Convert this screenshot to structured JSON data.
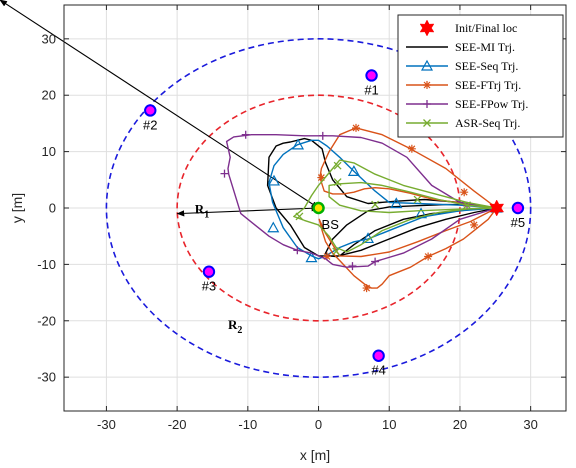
{
  "chart_data": {
    "type": "line",
    "xlabel": "x [m]",
    "ylabel": "y [m]",
    "xlim": [
      -36,
      35
    ],
    "ylim": [
      -36,
      36
    ],
    "xticks": [
      -30,
      -20,
      -10,
      0,
      10,
      20,
      30
    ],
    "yticks": [
      -30,
      -20,
      -10,
      0,
      10,
      20,
      30
    ],
    "grid": true,
    "legend_position": "top-right",
    "bs": {
      "x": 0,
      "y": 0,
      "label": "BS"
    },
    "users": [
      {
        "label": "#1",
        "x": 7.5,
        "y": 23.5
      },
      {
        "label": "#2",
        "x": -23.8,
        "y": 17.3
      },
      {
        "label": "#3",
        "x": -15.5,
        "y": -11.3
      },
      {
        "label": "#4",
        "x": 8.5,
        "y": -26.2
      },
      {
        "label": "#5",
        "x": 28.2,
        "y": 0
      }
    ],
    "circles": [
      {
        "name": "R1",
        "cx": 0,
        "cy": 0,
        "r": 20,
        "color": "#e8242b"
      },
      {
        "name": "R2",
        "cx": 0,
        "cy": 0,
        "rx": 30,
        "ry": 30,
        "color": "#1a1adc"
      }
    ],
    "radius_labels": [
      {
        "main": "R",
        "sub": "1",
        "x": -17.5,
        "y": -1.0
      },
      {
        "main": "R",
        "sub": "2",
        "x": -12.8,
        "y": -21.5
      }
    ],
    "init_final": {
      "x": 25.2,
      "y": 0,
      "legend": "Init/Final loc",
      "color": "#ff0000"
    },
    "series": [
      {
        "name": "SEE-MI Trj.",
        "color": "#000000",
        "marker": "none",
        "x": [
          25.2,
          20,
          15,
          11,
          7,
          4,
          2,
          1,
          0.5,
          -1,
          -2,
          -3,
          -4,
          -5,
          -6,
          -7,
          -7.2,
          -6,
          -4,
          -2,
          0,
          3,
          5,
          8,
          12,
          16,
          20,
          22,
          25.2,
          22,
          18,
          14,
          10,
          7,
          4,
          2,
          1,
          1.5,
          2.5,
          6,
          10,
          14,
          18,
          22,
          25.2
        ],
        "y": [
          0,
          1,
          1.5,
          1.2,
          0.8,
          2,
          5,
          8,
          10.5,
          12,
          12.3,
          12,
          11.7,
          11.5,
          11,
          9,
          4,
          0,
          -3,
          -7,
          -8.5,
          -8.5,
          -6.5,
          -4,
          -2,
          -1,
          -0.5,
          -0.2,
          0,
          0.6,
          0.6,
          0.4,
          0.2,
          -0.5,
          -3,
          -5.5,
          -8,
          -8.5,
          -8.6,
          -7.5,
          -5.5,
          -3.5,
          -2,
          -0.8,
          0
        ]
      },
      {
        "name": "SEE-Seq Trj.",
        "color": "#0072bd",
        "marker": "triangle",
        "x": [
          25.2,
          20,
          14,
          10,
          8,
          5,
          3,
          1.2,
          0,
          -1,
          -3,
          -5,
          -6.3,
          -7,
          -6.5,
          -5,
          -3,
          -1,
          0,
          1,
          3,
          5,
          7,
          11,
          15,
          20,
          25.2
        ],
        "y": [
          0,
          0.5,
          0.8,
          1,
          3,
          6.5,
          9,
          11,
          12,
          12,
          11.2,
          9.5,
          7.5,
          4.5,
          1,
          -3.5,
          -7,
          -8.5,
          -9,
          -8.5,
          -7,
          -6,
          -5.5,
          -3.5,
          -1.5,
          -0.5,
          0
        ],
        "markers_x": [
          25.2,
          11,
          5,
          -2.9,
          -6.3,
          -6.4,
          -1,
          7,
          14.5
        ],
        "markers_y": [
          0,
          0.8,
          6.5,
          11.2,
          4.8,
          -3.5,
          -8.8,
          -5.4,
          -1.0
        ]
      },
      {
        "name": "SEE-FTrj Trj.",
        "color": "#d95319",
        "marker": "star",
        "x": [
          25.2,
          22,
          18,
          13,
          9,
          5.3,
          3,
          1.5,
          0.4,
          0.2,
          0.8,
          2,
          3.5,
          5,
          6.5,
          8,
          10,
          13,
          16,
          20.5,
          25.2,
          24,
          22,
          20.5,
          18,
          15.5,
          13,
          10,
          9,
          8.3,
          7.5,
          6.5,
          5,
          3.5,
          2,
          1,
          0.5,
          0.1,
          1,
          3,
          6,
          10,
          14,
          18,
          21.5,
          25.2
        ],
        "y": [
          0,
          3,
          7,
          10.5,
          13,
          14.2,
          13,
          10,
          7,
          5.4,
          3,
          2.5,
          2.5,
          2.8,
          3.4,
          3.6,
          3.4,
          2.6,
          1.6,
          0.8,
          0,
          -2,
          -4,
          -5.5,
          -7.2,
          -8.6,
          -10.5,
          -12,
          -13.5,
          -14.2,
          -14.2,
          -13.5,
          -12,
          -10,
          -8,
          -6,
          -4,
          -2,
          -4.5,
          -8.5,
          -8.6,
          -7.8,
          -6,
          -4,
          -2.4,
          0
        ],
        "markers_x": [
          25.2,
          20.6,
          13.2,
          5.3,
          0.4,
          25.2,
          22,
          15.5,
          6.8,
          1.2
        ],
        "markers_y": [
          0,
          2.8,
          10.5,
          14.2,
          5.4,
          0,
          -3,
          -8.6,
          -14.2,
          -8.6
        ]
      },
      {
        "name": "SEE-FPow Trj.",
        "color": "#7e2f8e",
        "marker": "plus",
        "x": [
          25.2,
          20,
          16,
          12.5,
          9,
          6,
          2,
          -2,
          -6,
          -9.5,
          -12,
          -13,
          -12.5,
          -12.8,
          -12.7,
          -11,
          -9,
          -7,
          -5,
          -3,
          -1,
          0,
          1,
          2,
          4,
          7,
          8,
          12,
          16,
          20,
          25.2
        ],
        "y": [
          0,
          1,
          4,
          9,
          11.5,
          12.5,
          12.8,
          12.8,
          13,
          13,
          12.6,
          11.8,
          9,
          7,
          6,
          -1,
          -3,
          -5,
          -6.5,
          -7.5,
          -8,
          -8.5,
          -9,
          -10,
          -10.5,
          -10.3,
          -9.5,
          -8,
          -5.5,
          -2,
          0
        ],
        "markers_x": [
          25.2,
          21,
          0.6,
          -13.3,
          -10.3,
          -3,
          4.8,
          8
        ],
        "markers_y": [
          0,
          0.4,
          12.8,
          6.1,
          13,
          -7.5,
          -10.3,
          -9.5
        ]
      },
      {
        "name": "ASR-Seq Trj.",
        "color": "#77ac30",
        "marker": "x",
        "x": [
          25.2,
          21,
          16.5,
          12,
          8,
          5,
          3,
          2,
          1,
          0,
          -1,
          -2,
          -3.5,
          -2,
          0,
          1.5,
          2.5,
          4,
          6,
          9,
          13,
          17,
          21,
          25.2,
          21,
          17,
          13,
          9,
          6,
          3,
          1.5,
          1.5,
          3,
          6,
          10,
          14,
          18,
          22,
          25.2
        ],
        "y": [
          0,
          1,
          2.5,
          4,
          6,
          8,
          8.5,
          7,
          5.5,
          4,
          2.2,
          0,
          -1.5,
          -2.2,
          -3,
          -5,
          -7,
          -7.8,
          -6.5,
          -4,
          -2,
          -0.8,
          -0.2,
          0,
          0.5,
          1.5,
          2.8,
          4,
          4.5,
          4.3,
          4,
          2,
          0.5,
          -0.5,
          -0.8,
          -0.5,
          -0.3,
          -0.1,
          0
        ],
        "markers_x": [
          25.2,
          21,
          2.7,
          2.7,
          -2.7,
          2.5,
          8,
          14
        ],
        "markers_y": [
          0,
          0.5,
          7.5,
          4.6,
          -1.5,
          -7.7,
          0.6,
          1.5
        ]
      }
    ]
  }
}
